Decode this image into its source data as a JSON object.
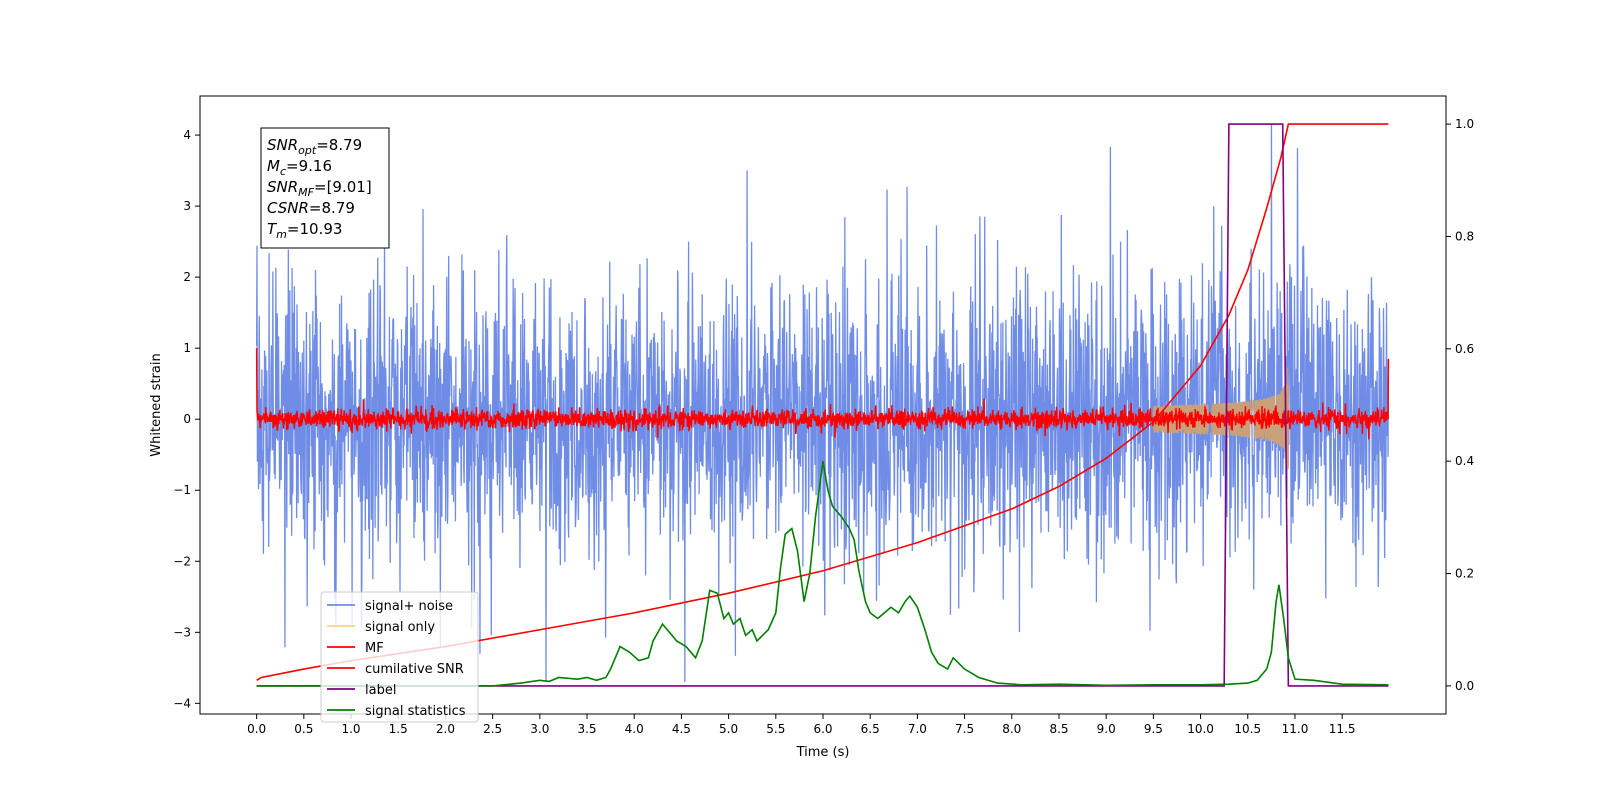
{
  "chart_data": {
    "type": "line",
    "xlabel": "Time (s)",
    "ylabel": "Whitened strain",
    "xlim": [
      -0.6,
      12.6
    ],
    "ylim": [
      -4.15,
      4.55
    ],
    "ylim_right": [
      -0.05,
      1.05
    ],
    "x_ticks": [
      0.0,
      0.5,
      1.0,
      1.5,
      2.0,
      2.5,
      3.0,
      3.5,
      4.0,
      4.5,
      5.0,
      5.5,
      6.0,
      6.5,
      7.0,
      7.5,
      8.0,
      8.5,
      9.0,
      9.5,
      10.0,
      10.5,
      11.0,
      11.5
    ],
    "x_tick_labels": [
      "0.0",
      "0.5",
      "1.0",
      "1.5",
      "2.0",
      "2.5",
      "3.0",
      "3.5",
      "4.0",
      "4.5",
      "5.0",
      "5.5",
      "6.0",
      "6.5",
      "7.0",
      "7.5",
      "8.0",
      "8.5",
      "9.0",
      "9.5",
      "10.0",
      "10.5",
      "11.0",
      "11.5"
    ],
    "y_ticks": [
      4,
      3,
      2,
      1,
      0,
      -1,
      -2,
      -3,
      -4
    ],
    "y_tick_labels": [
      "4",
      "3",
      "2",
      "1",
      "0",
      "−1",
      "−2",
      "−3",
      "−4"
    ],
    "y_right_ticks": [
      1.0,
      0.8,
      0.6,
      0.4,
      0.2,
      0.0
    ],
    "y_right_tick_labels": [
      "1.0",
      "0.8",
      "0.6",
      "0.4",
      "0.2",
      "0.0"
    ],
    "grid": false,
    "legend_position": "lower-left",
    "annotation": {
      "lines": [
        {
          "sym": "SNR",
          "sub": "opt",
          "value": "=8.79"
        },
        {
          "sym": "M",
          "sub": "c",
          "value": "=9.16"
        },
        {
          "sym": "SNR",
          "sub": "MF",
          "value": "=[9.01]"
        },
        {
          "sym": "CSNR",
          "sub": "",
          "value": "=8.79"
        },
        {
          "sym": "T",
          "sub": "m",
          "value": "=10.93"
        }
      ]
    },
    "series": [
      {
        "name": "signal+ noise",
        "color": "#6f8de6",
        "axis": "left",
        "kind": "noise",
        "x_range": [
          0.0,
          11.99
        ],
        "typical_range": [
          -1.6,
          1.8
        ],
        "peak_max": 4.15,
        "peak_min": -3.7
      },
      {
        "name": "signal only",
        "color": "#c8a07a",
        "axis": "left",
        "kind": "chirp",
        "x_range": [
          9.5,
          10.95
        ],
        "peak_amplitude": 0.55
      },
      {
        "name": "MF",
        "color": "#ff0000",
        "axis": "left",
        "kind": "noise",
        "x_range": [
          0.0,
          11.99
        ],
        "typical_range": [
          -0.15,
          0.15
        ],
        "edge_values": [
          1.0,
          0.85
        ]
      },
      {
        "name": "cumilative SNR",
        "color": "#ff0000",
        "axis": "right",
        "x": [
          0.0,
          0.05,
          0.5,
          1.0,
          2.0,
          3.0,
          4.0,
          5.0,
          6.0,
          7.0,
          8.0,
          8.5,
          9.0,
          9.5,
          10.0,
          10.3,
          10.5,
          10.7,
          10.85,
          10.93,
          11.0,
          11.99
        ],
        "y": [
          0.01,
          0.015,
          0.03,
          0.045,
          0.07,
          0.1,
          0.13,
          0.165,
          0.205,
          0.255,
          0.315,
          0.355,
          0.405,
          0.47,
          0.57,
          0.66,
          0.74,
          0.85,
          0.94,
          1.0,
          1.0,
          1.0
        ]
      },
      {
        "name": "label",
        "color": "#800080",
        "axis": "right",
        "x": [
          0.0,
          10.25,
          10.3,
          10.87,
          10.93,
          11.99
        ],
        "y": [
          0.0,
          0.0,
          1.0,
          1.0,
          0.0,
          0.0
        ]
      },
      {
        "name": "signal statistics",
        "color": "#008000",
        "axis": "right",
        "x": [
          0.0,
          0.5,
          1.0,
          1.5,
          2.0,
          2.5,
          2.8,
          3.0,
          3.1,
          3.2,
          3.4,
          3.5,
          3.6,
          3.7,
          3.75,
          3.85,
          3.95,
          4.05,
          4.15,
          4.2,
          4.3,
          4.45,
          4.55,
          4.65,
          4.72,
          4.8,
          4.88,
          4.95,
          5.0,
          5.05,
          5.12,
          5.18,
          5.25,
          5.3,
          5.36,
          5.42,
          5.5,
          5.55,
          5.6,
          5.67,
          5.73,
          5.8,
          5.86,
          5.92,
          6.0,
          6.05,
          6.1,
          6.2,
          6.28,
          6.33,
          6.38,
          6.45,
          6.5,
          6.58,
          6.65,
          6.72,
          6.8,
          6.87,
          6.92,
          7.0,
          7.08,
          7.15,
          7.22,
          7.32,
          7.38,
          7.5,
          7.65,
          7.85,
          8.1,
          8.5,
          9.0,
          9.5,
          10.0,
          10.3,
          10.5,
          10.6,
          10.7,
          10.75,
          10.8,
          10.83,
          10.88,
          10.93,
          11.0,
          11.2,
          11.5,
          11.99
        ],
        "y": [
          0.0,
          0.0,
          0.0,
          0.0,
          0.0,
          0.0,
          0.005,
          0.01,
          0.008,
          0.015,
          0.012,
          0.015,
          0.01,
          0.015,
          0.03,
          0.07,
          0.06,
          0.045,
          0.05,
          0.08,
          0.11,
          0.08,
          0.07,
          0.05,
          0.08,
          0.17,
          0.165,
          0.12,
          0.13,
          0.11,
          0.12,
          0.09,
          0.1,
          0.08,
          0.09,
          0.1,
          0.13,
          0.21,
          0.27,
          0.28,
          0.24,
          0.15,
          0.2,
          0.3,
          0.4,
          0.35,
          0.32,
          0.3,
          0.28,
          0.26,
          0.205,
          0.15,
          0.13,
          0.12,
          0.13,
          0.14,
          0.13,
          0.15,
          0.16,
          0.14,
          0.1,
          0.06,
          0.04,
          0.03,
          0.05,
          0.03,
          0.015,
          0.005,
          0.002,
          0.003,
          0.001,
          0.002,
          0.002,
          0.003,
          0.005,
          0.01,
          0.03,
          0.06,
          0.15,
          0.18,
          0.12,
          0.05,
          0.012,
          0.01,
          0.003,
          0.002
        ]
      }
    ]
  }
}
